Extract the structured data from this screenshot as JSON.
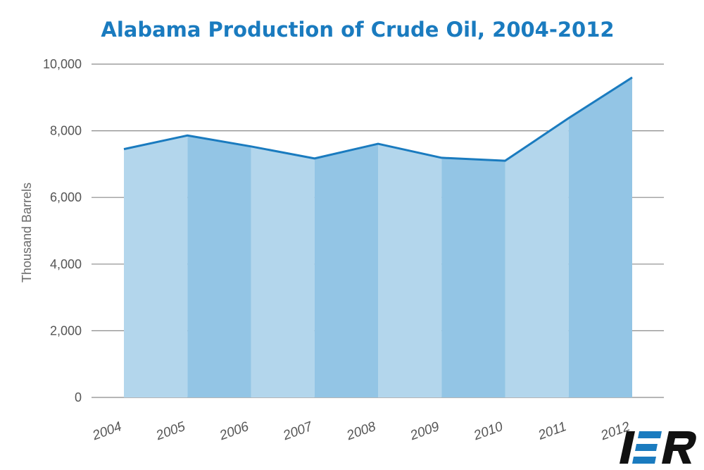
{
  "chart_data": {
    "type": "area",
    "title": "Alabama Production of Crude Oil, 2004-2012",
    "ylabel": "Thousand Barrels",
    "xlabel": "",
    "ylim": [
      0,
      10000
    ],
    "yticks": [
      0,
      2000,
      4000,
      6000,
      8000,
      10000
    ],
    "ytick_labels": [
      "0",
      "2,000",
      "4,000",
      "6,000",
      "8,000",
      "10,000"
    ],
    "categories": [
      "2004",
      "2005",
      "2006",
      "2007",
      "2008",
      "2009",
      "2010",
      "2011",
      "2012"
    ],
    "values": [
      7450,
      7860,
      7530,
      7170,
      7610,
      7190,
      7100,
      8380,
      9600
    ],
    "grid": true,
    "colors": {
      "title": "#1a7bbf",
      "line": "#1a7bbf",
      "band_light": "#b3d6ec",
      "band_dark": "#93c5e5",
      "grid": "#8a8a8a",
      "axis_text": "#555555"
    }
  },
  "logo": {
    "text": "IER",
    "icon": "ier-logo"
  }
}
